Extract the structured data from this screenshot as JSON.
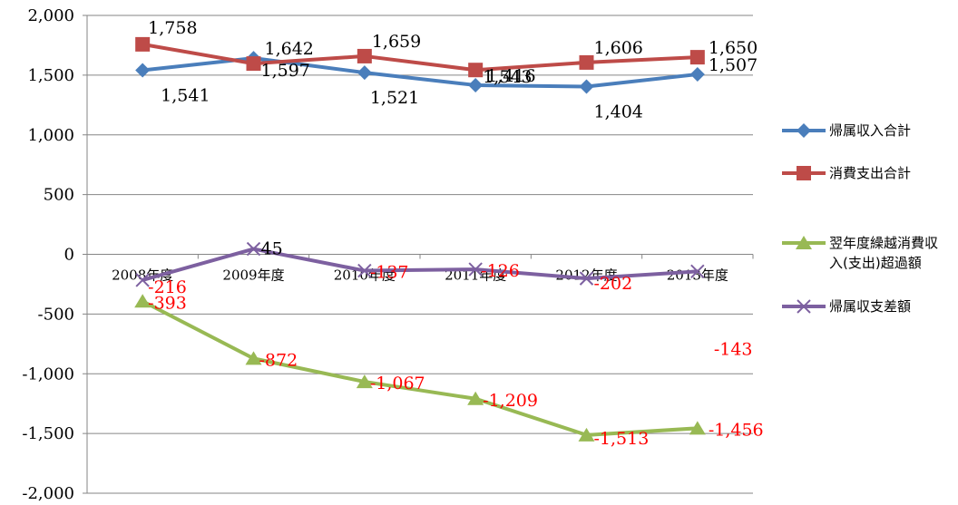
{
  "chart_data": {
    "type": "line",
    "title": "",
    "xlabel": "",
    "ylabel": "",
    "ylim": [
      -2000,
      2000
    ],
    "y_ticks": [
      2000,
      1500,
      1000,
      500,
      0,
      -500,
      -1000,
      -1500,
      -2000
    ],
    "y_tick_labels": [
      "2,000",
      "1,500",
      "1,000",
      "500",
      "0",
      "-500",
      "-1,000",
      "-1,500",
      "-2,000"
    ],
    "categories": [
      "2008年度",
      "2009年度",
      "2010年度",
      "2011年度",
      "2012年度",
      "2013年度"
    ],
    "grid": true,
    "legend_position": "right",
    "series": [
      {
        "name": "帰属収入合計",
        "color": "#4a7ebb",
        "marker": "diamond",
        "values": [
          1541,
          1642,
          1521,
          1416,
          1404,
          1507
        ],
        "labels": [
          "1,541",
          "1,642",
          "1,521",
          "1,416",
          "1,404",
          "1,507"
        ],
        "label_color": "#000000"
      },
      {
        "name": "消費支出合計",
        "color": "#be4b48",
        "marker": "square",
        "values": [
          1758,
          1597,
          1659,
          1543,
          1606,
          1650
        ],
        "labels": [
          "1,758",
          "1,597",
          "1,659",
          "1,543",
          "1,606",
          "1,650"
        ],
        "label_color": "#000000"
      },
      {
        "name": "翌年度繰越消費収入(支出)超過額",
        "legend_lines": [
          "翌年度繰越消費収",
          "入(支出)超過額"
        ],
        "color": "#98b954",
        "marker": "triangle",
        "values": [
          -393,
          -872,
          -1067,
          -1209,
          -1513,
          -1456
        ],
        "labels": [
          "-393",
          "-872",
          "-1,067",
          "-1,209",
          "-1,513",
          "-1,456"
        ],
        "label_color": "#ff0000"
      },
      {
        "name": "帰属収支差額",
        "color": "#7d60a0",
        "marker": "x",
        "values": [
          -216,
          45,
          -137,
          -126,
          -202,
          -143
        ],
        "labels": [
          "-216",
          "45",
          "-137",
          "-126",
          "-202",
          "-143"
        ],
        "label_color": "#ff0000",
        "label_colors": [
          "#ff0000",
          "#000000",
          "#ff0000",
          "#ff0000",
          "#ff0000",
          "#ff0000"
        ]
      }
    ]
  }
}
